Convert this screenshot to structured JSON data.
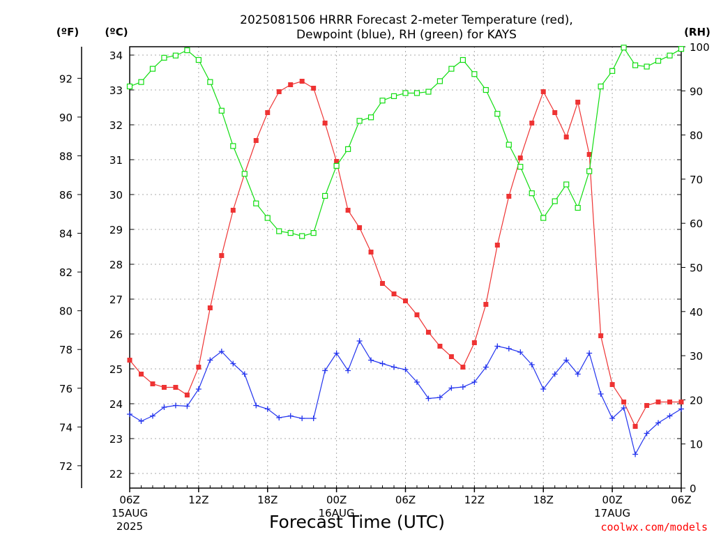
{
  "title_line1": "2025081506 HRRR Forecast 2-meter Temperature (red),",
  "title_line2": "Dewpoint (blue), RH (green) for KAYS",
  "unit_f": "(ºF)",
  "unit_c": "(ºC)",
  "unit_rh": "(RH)",
  "credit": "coolwx.com/models",
  "colors": {
    "temperature": "#ee3333",
    "dewpoint": "#2233ee",
    "rh": "#11dd11",
    "grid": "#aaaaaa"
  },
  "chart_data": {
    "type": "line",
    "title": "2025081506 HRRR Forecast 2-meter Temperature (red), Dewpoint (blue), RH (green) for KAYS",
    "xlabel": "Forecast Time (UTC)",
    "x_hours": [
      0,
      1,
      2,
      3,
      4,
      5,
      6,
      7,
      8,
      9,
      10,
      11,
      12,
      13,
      14,
      15,
      16,
      17,
      18,
      19,
      20,
      21,
      22,
      23,
      24,
      25,
      26,
      27,
      28,
      29,
      30,
      31,
      32,
      33,
      34,
      35,
      36,
      37,
      38,
      39,
      40,
      41,
      42,
      43,
      44,
      45,
      46,
      47,
      48
    ],
    "x_ticks": [
      {
        "hour": 0,
        "label": "06Z",
        "sub1": "15AUG",
        "sub2": "2025"
      },
      {
        "hour": 6,
        "label": "12Z",
        "sub1": "",
        "sub2": ""
      },
      {
        "hour": 12,
        "label": "18Z",
        "sub1": "",
        "sub2": ""
      },
      {
        "hour": 18,
        "label": "00Z",
        "sub1": "16AUG",
        "sub2": ""
      },
      {
        "hour": 24,
        "label": "06Z",
        "sub1": "",
        "sub2": ""
      },
      {
        "hour": 30,
        "label": "12Z",
        "sub1": "",
        "sub2": ""
      },
      {
        "hour": 36,
        "label": "18Z",
        "sub1": "",
        "sub2": ""
      },
      {
        "hour": 42,
        "label": "00Z",
        "sub1": "17AUG",
        "sub2": ""
      },
      {
        "hour": 48,
        "label": "06Z",
        "sub1": "",
        "sub2": ""
      }
    ],
    "y_celsius": {
      "range": [
        21.58,
        34.24
      ],
      "ticks": [
        22,
        23,
        24,
        25,
        26,
        27,
        28,
        29,
        30,
        31,
        32,
        33,
        34
      ]
    },
    "y_fahrenheit": {
      "ticks": [
        72,
        74,
        76,
        78,
        80,
        82,
        84,
        86,
        88,
        90,
        92
      ]
    },
    "y_rh": {
      "range": [
        0,
        100
      ],
      "ticks": [
        0,
        10,
        20,
        30,
        40,
        50,
        60,
        70,
        80,
        90,
        100
      ]
    },
    "grid": true,
    "series": [
      {
        "name": "Temperature",
        "axis": "celsius",
        "marker": "filled-square",
        "values": [
          25.25,
          24.85,
          24.57,
          24.47,
          24.47,
          24.25,
          25.05,
          26.75,
          28.25,
          29.55,
          30.6,
          31.55,
          32.35,
          32.95,
          33.15,
          33.25,
          33.05,
          32.05,
          30.95,
          29.55,
          29.05,
          28.35,
          27.45,
          27.15,
          26.95,
          26.55,
          26.05,
          25.65,
          25.35,
          25.05,
          25.75,
          26.85,
          28.55,
          29.95,
          31.05,
          32.05,
          32.95,
          32.35,
          31.65,
          32.65,
          31.15,
          25.95,
          24.55,
          24.05,
          23.35,
          23.95,
          24.05,
          24.05,
          24.05
        ]
      },
      {
        "name": "Dewpoint",
        "axis": "celsius",
        "marker": "plus",
        "values": [
          23.7,
          23.5,
          23.65,
          23.9,
          23.95,
          23.93,
          24.42,
          25.25,
          25.5,
          25.15,
          24.85,
          23.95,
          23.85,
          23.6,
          23.65,
          23.58,
          23.58,
          24.95,
          25.45,
          24.95,
          25.8,
          25.25,
          25.15,
          25.05,
          24.98,
          24.62,
          24.15,
          24.18,
          24.45,
          24.48,
          24.62,
          25.05,
          25.65,
          25.58,
          25.48,
          25.12,
          24.42,
          24.85,
          25.25,
          24.85,
          25.45,
          24.28,
          23.58,
          23.88,
          22.55,
          23.15,
          23.45,
          23.65,
          23.85
        ]
      },
      {
        "name": "RH",
        "axis": "rh",
        "marker": "open-square",
        "values": [
          91,
          92,
          95,
          97.5,
          98,
          99.2,
          97,
          92,
          85.5,
          77.5,
          71.2,
          64.5,
          61.2,
          58.2,
          57.8,
          57.1,
          57.8,
          66.2,
          73,
          76.8,
          83.2,
          84,
          87.8,
          88.8,
          89.5,
          89.5,
          89.8,
          92.2,
          95,
          97,
          93.8,
          90.2,
          84.8,
          77.8,
          72.8,
          66.8,
          61.2,
          65,
          68.8,
          63.5,
          71.8,
          91,
          94.5,
          99.8,
          95.8,
          95.5,
          96.8,
          98,
          99.5
        ]
      }
    ]
  }
}
